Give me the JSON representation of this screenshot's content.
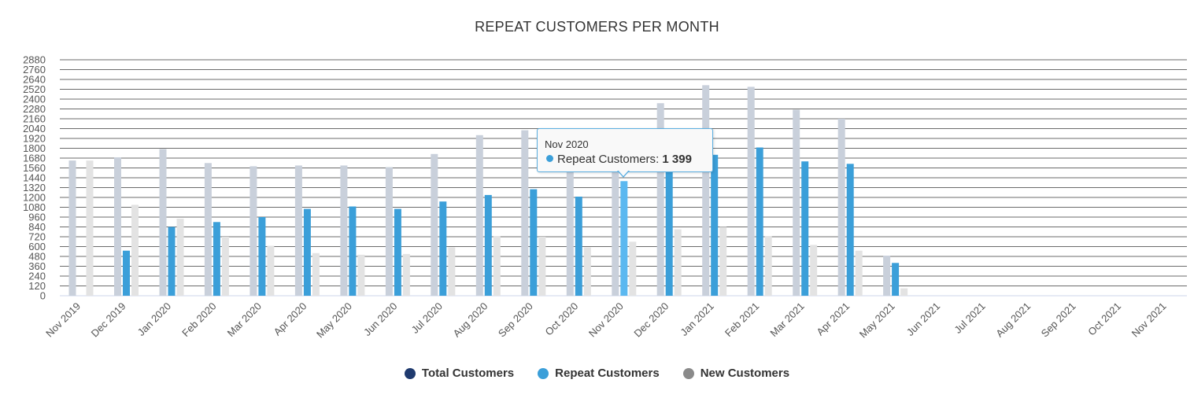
{
  "chart_data": {
    "type": "bar",
    "title": "REPEAT CUSTOMERS PER MONTH",
    "xlabel": "",
    "ylabel": "",
    "ylim": [
      0,
      2880
    ],
    "yticks": [
      0,
      120,
      240,
      360,
      480,
      600,
      720,
      840,
      960,
      1080,
      1200,
      1320,
      1440,
      1560,
      1680,
      1800,
      1920,
      2040,
      2160,
      2280,
      2400,
      2520,
      2640,
      2760,
      2880
    ],
    "categories": [
      "Nov 2019",
      "Dec 2019",
      "Jan 2020",
      "Feb 2020",
      "Mar 2020",
      "Apr 2020",
      "May 2020",
      "Jun 2020",
      "Jul 2020",
      "Aug 2020",
      "Sep 2020",
      "Oct 2020",
      "Nov 2020",
      "Dec 2020",
      "Jan 2021",
      "Feb 2021",
      "Mar 2021",
      "Apr 2021",
      "May 2021",
      "Jun 2021",
      "Jul 2021",
      "Aug 2021",
      "Sep 2021",
      "Oct 2021",
      "Nov 2021"
    ],
    "series": [
      {
        "name": "Total Customers",
        "color": "#c9d0db",
        "legend_color": "#1f3a6e",
        "values": [
          1650,
          1690,
          1790,
          1620,
          1580,
          1590,
          1590,
          1570,
          1730,
          1960,
          2020,
          1740,
          2010,
          2350,
          2570,
          2550,
          2270,
          2160,
          490,
          0,
          0,
          0,
          0,
          0,
          0
        ]
      },
      {
        "name": "Repeat Customers",
        "color": "#3b9fd9",
        "legend_color": "#3b9fd9",
        "values": [
          0,
          550,
          840,
          900,
          960,
          1060,
          1090,
          1060,
          1150,
          1230,
          1300,
          1210,
          1399,
          1550,
          1720,
          1810,
          1640,
          1610,
          400,
          0,
          0,
          0,
          0,
          0,
          0
        ]
      },
      {
        "name": "New Customers",
        "color": "#e3e3e3",
        "legend_color": "#8a8a8a",
        "values": [
          1650,
          1110,
          940,
          720,
          610,
          520,
          500,
          510,
          590,
          730,
          720,
          590,
          660,
          810,
          840,
          730,
          620,
          550,
          90,
          0,
          0,
          0,
          0,
          0,
          0
        ]
      }
    ],
    "legend_position": "bottom-center",
    "highlighted": {
      "category": "Nov 2020",
      "series": "Repeat Customers",
      "color": "#5bb8f0"
    }
  },
  "tooltip": {
    "header": "Nov 2020",
    "label": "Repeat Customers",
    "value": "1 399",
    "dot_color": "#3b9fd9"
  }
}
